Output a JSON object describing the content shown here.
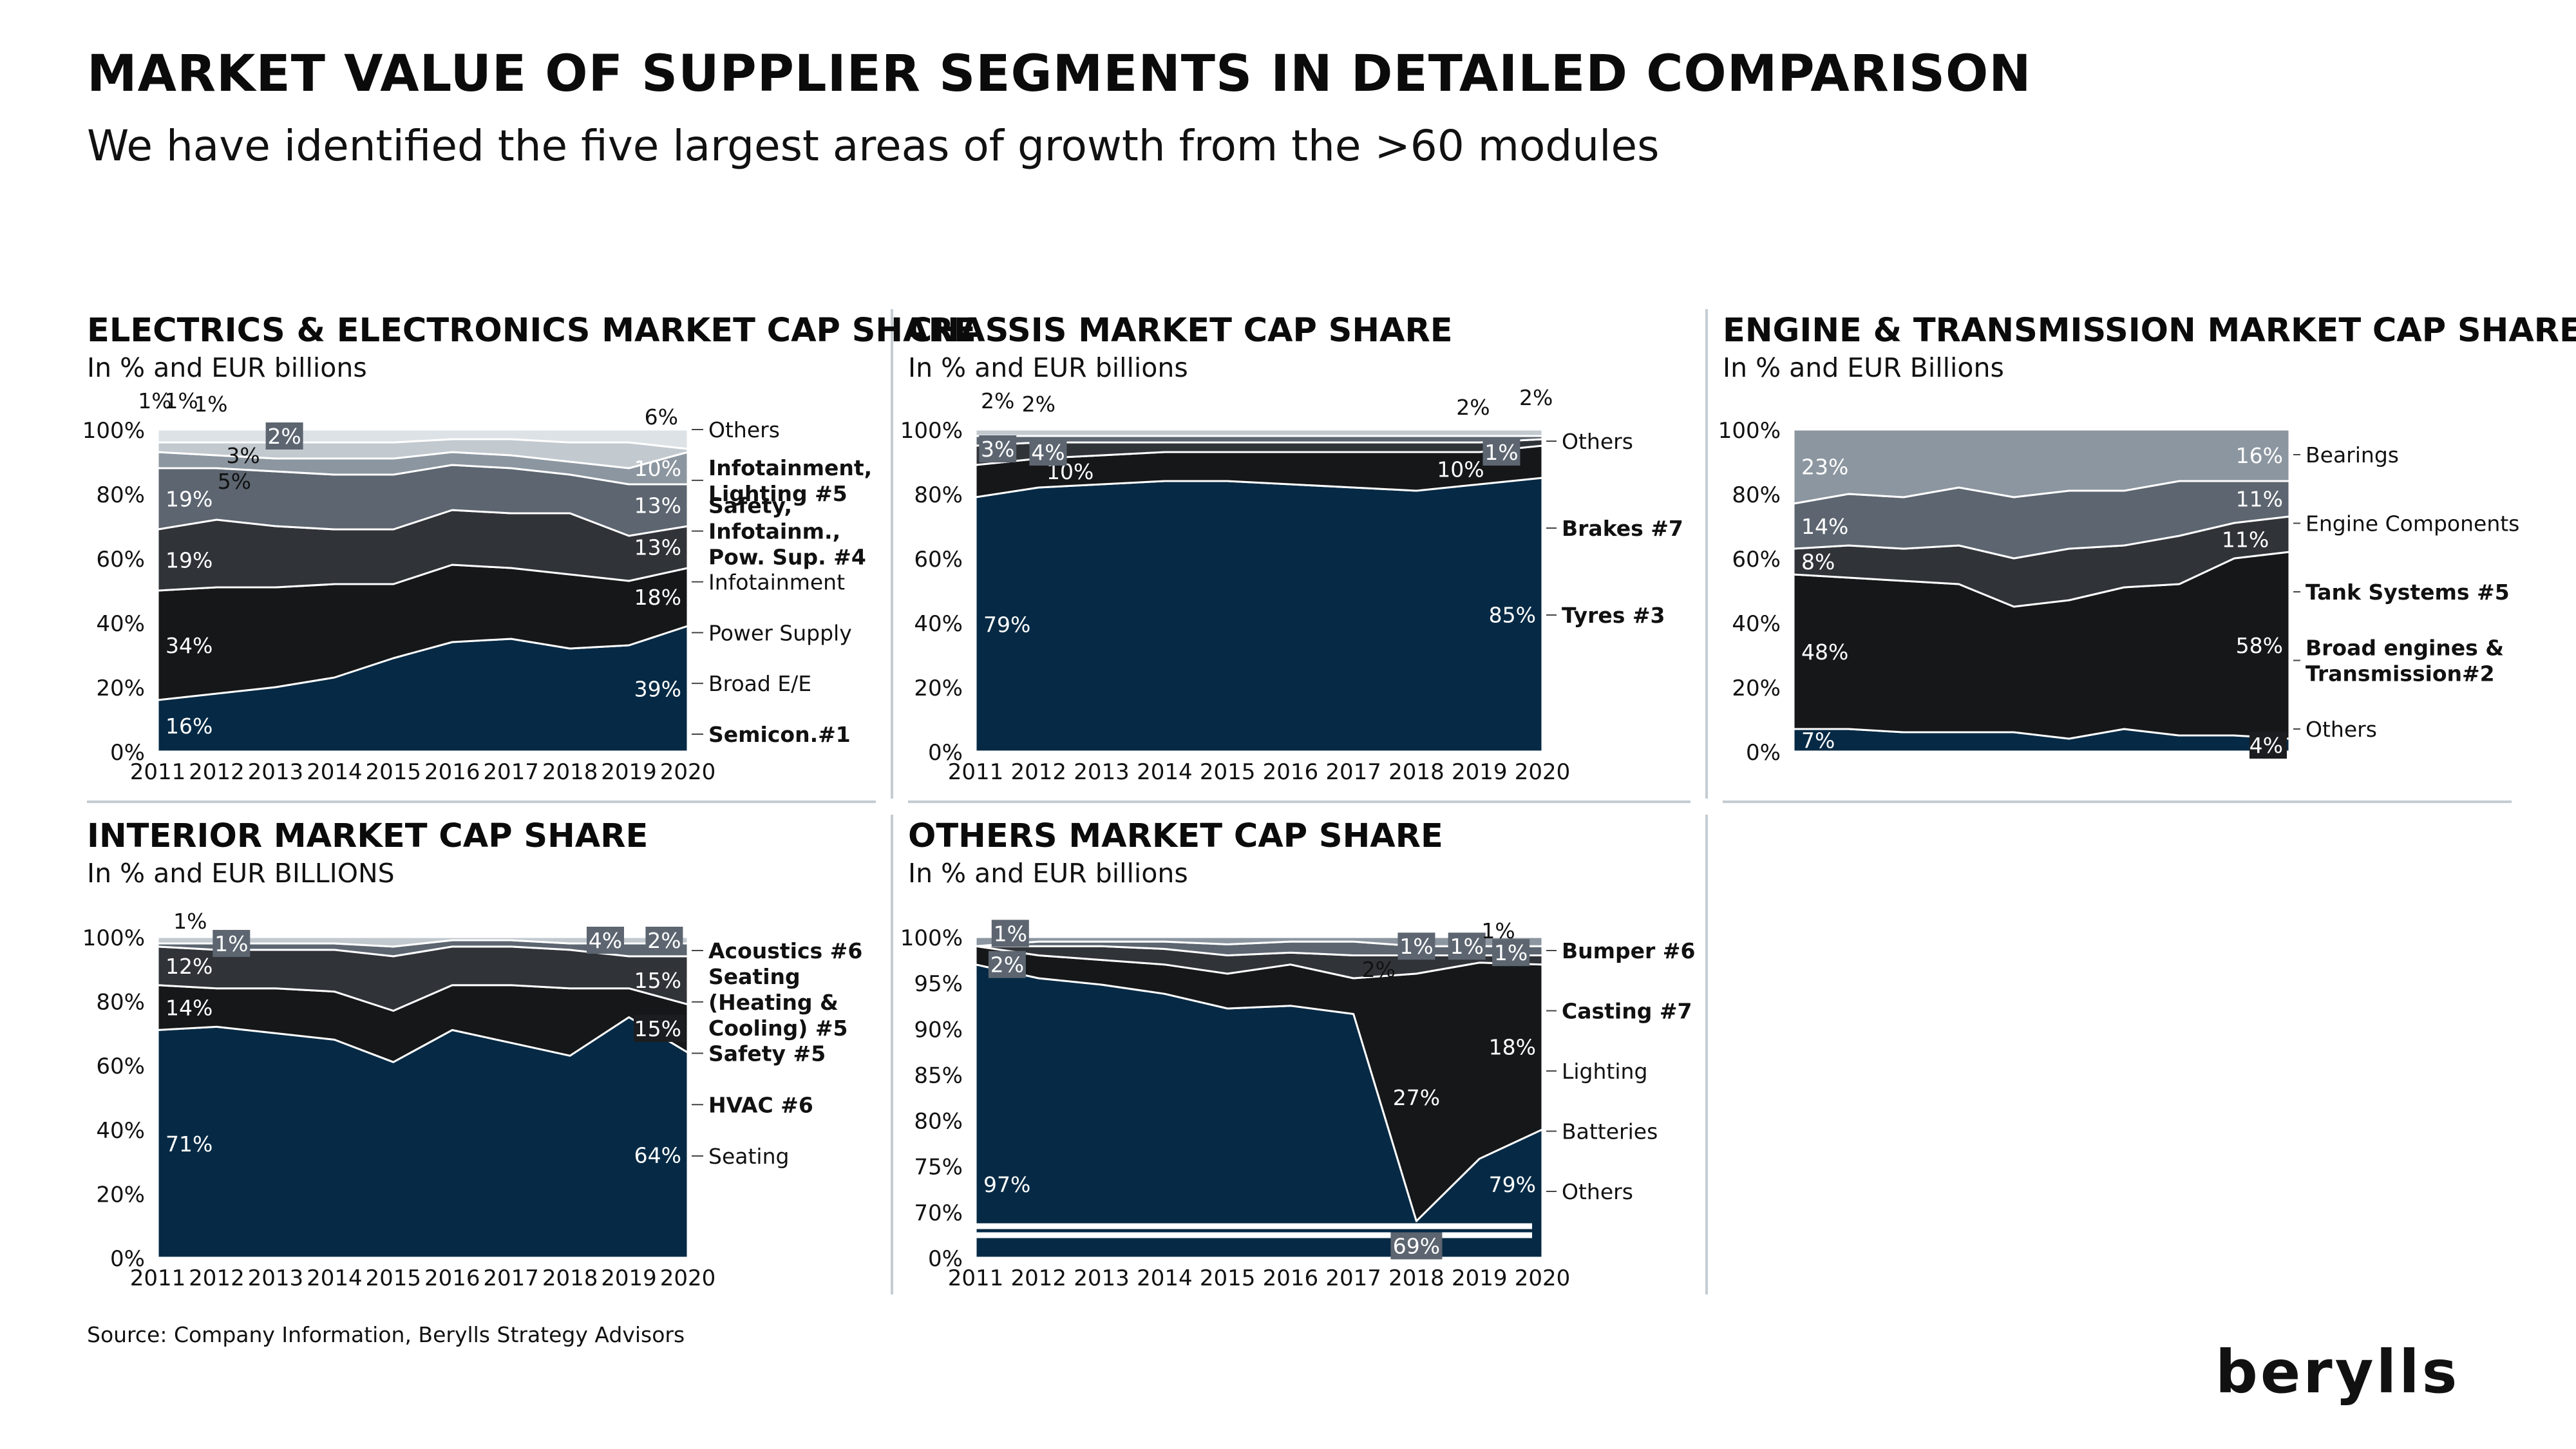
{
  "header": {
    "title": "MARKET VALUE OF SUPPLIER SEGMENTS IN DETAILED COMPARISON",
    "subtitle": "We have identified the five largest areas of growth from the >60 modules"
  },
  "footer": {
    "source": "Source: Company Information, Berylls Strategy Advisors",
    "logo_text": "berylls"
  },
  "colors": {
    "navy": "#062a45",
    "black": "#161719",
    "charcoal": "#303338",
    "slate": "#5c6570",
    "gray": "#8c96a0",
    "light": "#c2c9cf",
    "lighter": "#dde2e6",
    "divider": "#c5ccd2"
  },
  "chart_data": [
    {
      "type": "area",
      "title": "ELECTRICS & ELECTRONICS MARKET CAP SHARE",
      "subtitle": "In % and EUR billions",
      "x": [
        "2011",
        "2012",
        "2013",
        "2014",
        "2015",
        "2016",
        "2017",
        "2018",
        "2019",
        "2020"
      ],
      "ylim": [
        0,
        100
      ],
      "yticks": [
        "0%",
        "20%",
        "40%",
        "60%",
        "80%",
        "100%"
      ],
      "stack_order": "bottom-to-top",
      "series": [
        {
          "name": "Semicon.#1",
          "values": [
            16,
            18,
            20,
            23,
            29,
            34,
            35,
            32,
            33,
            39
          ],
          "color": "navy"
        },
        {
          "name": "Broad E/E",
          "values": [
            34,
            33,
            31,
            29,
            23,
            24,
            22,
            23,
            20,
            18
          ],
          "color": "black"
        },
        {
          "name": "Power Supply",
          "values": [
            19,
            21,
            19,
            17,
            17,
            17,
            17,
            19,
            14,
            13
          ],
          "color": "charcoal"
        },
        {
          "name": "Infotainment",
          "values": [
            19,
            16,
            17,
            17,
            17,
            14,
            14,
            12,
            16,
            13
          ],
          "color": "slate"
        },
        {
          "name": "Safety, Infotainm., Pow. Sup. #4",
          "values": [
            5,
            4,
            4,
            5,
            5,
            4,
            4,
            4,
            5,
            10
          ],
          "color": "gray"
        },
        {
          "name": "Infotainment, Lighting #5",
          "values": [
            3,
            4,
            5,
            5,
            5,
            4,
            5,
            6,
            8,
            1
          ],
          "color": "light"
        },
        {
          "name": "Others",
          "values": [
            4,
            4,
            4,
            4,
            4,
            3,
            3,
            4,
            4,
            6
          ],
          "color": "lighter"
        }
      ],
      "data_labels": [
        {
          "text": "16%",
          "series": 0,
          "i": 0
        },
        {
          "text": "39%",
          "series": 0,
          "i": 9
        },
        {
          "text": "34%",
          "series": 1,
          "i": 0
        },
        {
          "text": "18%",
          "series": 1,
          "i": 9
        },
        {
          "text": "19%",
          "series": 2,
          "i": 0
        },
        {
          "text": "13%",
          "series": 2,
          "i": 9
        },
        {
          "text": "19%",
          "series": 3,
          "i": 0
        },
        {
          "text": "13%",
          "series": 3,
          "i": 9
        },
        {
          "text": "10%",
          "series": 4,
          "i": 9
        }
      ],
      "callouts": [
        {
          "text": "1%",
          "x": -0.05,
          "y": 109
        },
        {
          "text": "1%",
          "x": 0.4,
          "y": 109
        },
        {
          "text": "1%",
          "x": 0.9,
          "y": 108
        },
        {
          "text": "2%",
          "x": 2.15,
          "y": 98,
          "boxed": true
        },
        {
          "text": "3%",
          "x": 1.45,
          "y": 92
        },
        {
          "text": "5%",
          "x": 1.3,
          "y": 84
        },
        {
          "text": "6%",
          "x": 8.55,
          "y": 104
        }
      ],
      "legend": [
        {
          "label": "Others",
          "bold": false
        },
        {
          "label": "Infotainment,\nLighting #5",
          "bold": true
        },
        {
          "label": "Safety,\nInfotainm.,\nPow. Sup. #4",
          "bold": true
        },
        {
          "label": "Infotainment",
          "bold": false
        },
        {
          "label": "Power Supply",
          "bold": false
        },
        {
          "label": "Broad E/E",
          "bold": false
        },
        {
          "label": "Semicon.#1",
          "bold": true
        }
      ]
    },
    {
      "type": "area",
      "title": "CHASSIS MARKET CAP SHARE",
      "subtitle": "In % and EUR billions",
      "x": [
        "2011",
        "2012",
        "2013",
        "2014",
        "2015",
        "2016",
        "2017",
        "2018",
        "2019",
        "2020"
      ],
      "ylim": [
        0,
        100
      ],
      "yticks": [
        "0%",
        "20%",
        "40%",
        "60%",
        "80%",
        "100%"
      ],
      "stack_order": "bottom-to-top",
      "series": [
        {
          "name": "Tyres #3",
          "values": [
            79,
            82,
            83,
            84,
            84,
            83,
            82,
            81,
            83,
            85
          ],
          "color": "navy"
        },
        {
          "name": "Brakes #7",
          "values": [
            10,
            9,
            9,
            9,
            9,
            10,
            11,
            12,
            10,
            10
          ],
          "color": "black"
        },
        {
          "name": "",
          "values": [
            6,
            5,
            4,
            3,
            3,
            3,
            3,
            3,
            3,
            2
          ],
          "color": "charcoal"
        },
        {
          "name": "",
          "values": [
            3,
            2,
            2,
            2,
            2,
            2,
            2,
            2,
            2,
            1
          ],
          "color": "slate"
        },
        {
          "name": "Others",
          "values": [
            2,
            2,
            2,
            2,
            2,
            2,
            2,
            2,
            2,
            2
          ],
          "color": "light"
        }
      ],
      "data_labels": [
        {
          "text": "79%",
          "series": 0,
          "i": 0
        },
        {
          "text": "85%",
          "series": 0,
          "i": 9
        },
        {
          "text": "10%",
          "series": 1,
          "i": 1.5
        },
        {
          "text": "10%",
          "series": 1,
          "i": 7.7
        }
      ],
      "callouts": [
        {
          "text": "2%",
          "x": 0.35,
          "y": 109
        },
        {
          "text": "2%",
          "x": 1.0,
          "y": 108
        },
        {
          "text": "3%",
          "x": 0.35,
          "y": 94,
          "boxed": true
        },
        {
          "text": "4%",
          "x": 1.15,
          "y": 93,
          "boxed": true
        },
        {
          "text": "2%",
          "x": 7.9,
          "y": 107
        },
        {
          "text": "2%",
          "x": 8.9,
          "y": 110
        },
        {
          "text": "1%",
          "x": 8.35,
          "y": 93,
          "boxed": true
        }
      ],
      "legend": [
        {
          "label": "Others",
          "bold": false
        },
        {
          "label": "Brakes #7",
          "bold": true
        },
        {
          "label": "Tyres #3",
          "bold": true
        }
      ]
    },
    {
      "type": "area",
      "title": "ENGINE & TRANSMISSION MARKET CAP SHARE",
      "subtitle": "In % and EUR Billions",
      "x": [
        "2011",
        "2012",
        "2013",
        "2014",
        "2015",
        "2016",
        "2017",
        "2018",
        "2019",
        "2020"
      ],
      "xaxis_labels_shown": false,
      "ylim": [
        0,
        100
      ],
      "yticks": [
        "0%",
        "20%",
        "40%",
        "60%",
        "80%",
        "100%"
      ],
      "stack_order": "bottom-to-top",
      "series": [
        {
          "name": "Others",
          "values": [
            7,
            7,
            6,
            6,
            6,
            4,
            7,
            5,
            5,
            4
          ],
          "color": "navy"
        },
        {
          "name": "Broad engines & Transmission#2",
          "values": [
            48,
            47,
            47,
            46,
            39,
            43,
            44,
            47,
            55,
            58
          ],
          "color": "black"
        },
        {
          "name": "Tank Systems #5",
          "values": [
            8,
            10,
            10,
            12,
            15,
            16,
            13,
            15,
            11,
            11
          ],
          "color": "charcoal"
        },
        {
          "name": "Engine Components",
          "values": [
            14,
            16,
            16,
            18,
            19,
            18,
            17,
            17,
            13,
            11
          ],
          "color": "slate"
        },
        {
          "name": "Bearings",
          "values": [
            23,
            20,
            21,
            18,
            21,
            19,
            19,
            16,
            16,
            16
          ],
          "color": "gray"
        }
      ],
      "data_labels": [
        {
          "text": "7%",
          "series": 0,
          "i": 0
        },
        {
          "text": "4%",
          "series": 0,
          "i": 9,
          "boxed": true
        },
        {
          "text": "48%",
          "series": 1,
          "i": 0
        },
        {
          "text": "58%",
          "series": 1,
          "i": 9
        },
        {
          "text": "8%",
          "series": 2,
          "i": 0
        },
        {
          "text": "11%",
          "series": 2,
          "i": 8.2
        },
        {
          "text": "14%",
          "series": 3,
          "i": 0
        },
        {
          "text": "11%",
          "series": 3,
          "i": 9
        },
        {
          "text": "23%",
          "series": 4,
          "i": 0
        },
        {
          "text": "16%",
          "series": 4,
          "i": 9
        }
      ],
      "callouts": [],
      "legend": [
        {
          "label": "Bearings",
          "bold": false
        },
        {
          "label": "Engine Components",
          "bold": false
        },
        {
          "label": "Tank Systems #5",
          "bold": true
        },
        {
          "label": "Broad engines &\nTransmission#2",
          "bold": true
        },
        {
          "label": "Others",
          "bold": false
        }
      ]
    },
    {
      "type": "area",
      "title": "INTERIOR MARKET CAP SHARE",
      "subtitle": "In % and EUR BILLIONS",
      "x": [
        "2011",
        "2012",
        "2013",
        "2014",
        "2015",
        "2016",
        "2017",
        "2018",
        "2019",
        "2020"
      ],
      "ylim": [
        0,
        100
      ],
      "yticks": [
        "0%",
        "20%",
        "40%",
        "60%",
        "80%",
        "100%"
      ],
      "stack_order": "bottom-to-top",
      "series": [
        {
          "name": "Seating",
          "values": [
            71,
            72,
            70,
            68,
            61,
            71,
            67,
            63,
            75,
            64
          ],
          "color": "navy"
        },
        {
          "name": "HVAC #6",
          "values": [
            14,
            12,
            14,
            15,
            16,
            14,
            18,
            21,
            9,
            15
          ],
          "color": "black"
        },
        {
          "name": "Safety #5",
          "values": [
            12,
            12,
            12,
            13,
            17,
            12,
            12,
            12,
            10,
            15
          ],
          "color": "charcoal"
        },
        {
          "name": "Seating (Heating & Cooling) #5",
          "values": [
            1,
            2,
            2,
            2,
            3,
            2,
            2,
            2,
            4,
            4
          ],
          "color": "slate"
        },
        {
          "name": "Acoustics #6",
          "values": [
            2,
            2,
            2,
            2,
            3,
            1,
            1,
            2,
            2,
            2
          ],
          "color": "light"
        }
      ],
      "data_labels": [
        {
          "text": "71%",
          "series": 0,
          "i": 0
        },
        {
          "text": "64%",
          "series": 0,
          "i": 9
        },
        {
          "text": "14%",
          "series": 1,
          "i": 0
        },
        {
          "text": "15%",
          "series": 1,
          "i": 9,
          "boxed": true
        },
        {
          "text": "12%",
          "series": 2,
          "i": 0
        },
        {
          "text": "15%",
          "series": 2,
          "i": 9
        }
      ],
      "callouts": [
        {
          "text": "1%",
          "x": 0.55,
          "y": 105
        },
        {
          "text": "1%",
          "x": 1.25,
          "y": 98,
          "boxed": true
        },
        {
          "text": "4%",
          "x": 7.6,
          "y": 99,
          "boxed": true
        },
        {
          "text": "2%",
          "x": 8.6,
          "y": 99,
          "boxed": true
        }
      ],
      "legend": [
        {
          "label": "Acoustics #6",
          "bold": true
        },
        {
          "label": "Seating\n(Heating &\nCooling) #5",
          "bold": true
        },
        {
          "label": "Safety #5",
          "bold": true
        },
        {
          "label": "HVAC #6",
          "bold": true
        },
        {
          "label": "Seating",
          "bold": false
        }
      ]
    },
    {
      "type": "area",
      "title": "OTHERS MARKET CAP SHARE",
      "subtitle": "In % and EUR billions",
      "x": [
        "2011",
        "2012",
        "2013",
        "2014",
        "2015",
        "2016",
        "2017",
        "2018",
        "2019",
        "2020"
      ],
      "ylim": [
        65,
        100
      ],
      "axis_break": true,
      "yticks": [
        "0%",
        "70%",
        "75%",
        "80%",
        "85%",
        "90%",
        "95%",
        "100%"
      ],
      "stack_order": "bottom-to-top",
      "series": [
        {
          "name": "Others",
          "values": [
            97,
            95.5,
            94.8,
            93.8,
            92.2,
            92.5,
            91.6,
            69,
            75.8,
            79
          ],
          "color": "navy"
        },
        {
          "name": "Batteries",
          "values": [
            2,
            2.5,
            2.7,
            3.2,
            3.8,
            4.5,
            3.9,
            27,
            21.4,
            18
          ],
          "color": "black"
        },
        {
          "name": "Lighting",
          "values": [
            0,
            1,
            1.5,
            1.7,
            2,
            1.3,
            2.5,
            2,
            0.8,
            1
          ],
          "color": "charcoal"
        },
        {
          "name": "Casting #7",
          "values": [
            0,
            0.5,
            0.5,
            0.8,
            1.2,
            1.2,
            1.5,
            1,
            1,
            1
          ],
          "color": "slate"
        },
        {
          "name": "Bumper #6",
          "values": [
            1,
            0.5,
            0.5,
            0.5,
            0.8,
            0.5,
            0.5,
            1,
            1,
            1
          ],
          "color": "gray"
        }
      ],
      "data_labels": [
        {
          "text": "97%",
          "series": 0,
          "i": 0
        },
        {
          "text": "79%",
          "series": 0,
          "i": 9
        },
        {
          "text": "27%",
          "series": 1,
          "i": 7.0
        },
        {
          "text": "18%",
          "series": 1,
          "i": 9
        }
      ],
      "callouts": [
        {
          "text": "1%",
          "x": 0.55,
          "y": 100.4,
          "boxed": true
        },
        {
          "text": "2%",
          "x": 0.5,
          "y": 97.0,
          "boxed": true
        },
        {
          "text": "2%",
          "x": 6.4,
          "y": 96.5
        },
        {
          "text": "69%",
          "x": 7.0,
          "y": 66.3,
          "boxed": true
        },
        {
          "text": "1%",
          "x": 7.0,
          "y": 99.0,
          "boxed": true
        },
        {
          "text": "1%",
          "x": 7.8,
          "y": 99.0,
          "boxed": true
        },
        {
          "text": "1%",
          "x": 8.3,
          "y": 100.7
        },
        {
          "text": "1%",
          "x": 8.5,
          "y": 98.3,
          "boxed": true
        }
      ],
      "legend": [
        {
          "label": "Bumper #6",
          "bold": true
        },
        {
          "label": "Casting #7",
          "bold": true
        },
        {
          "label": "Lighting",
          "bold": false
        },
        {
          "label": "Batteries",
          "bold": false
        },
        {
          "label": "Others",
          "bold": false
        }
      ]
    }
  ]
}
